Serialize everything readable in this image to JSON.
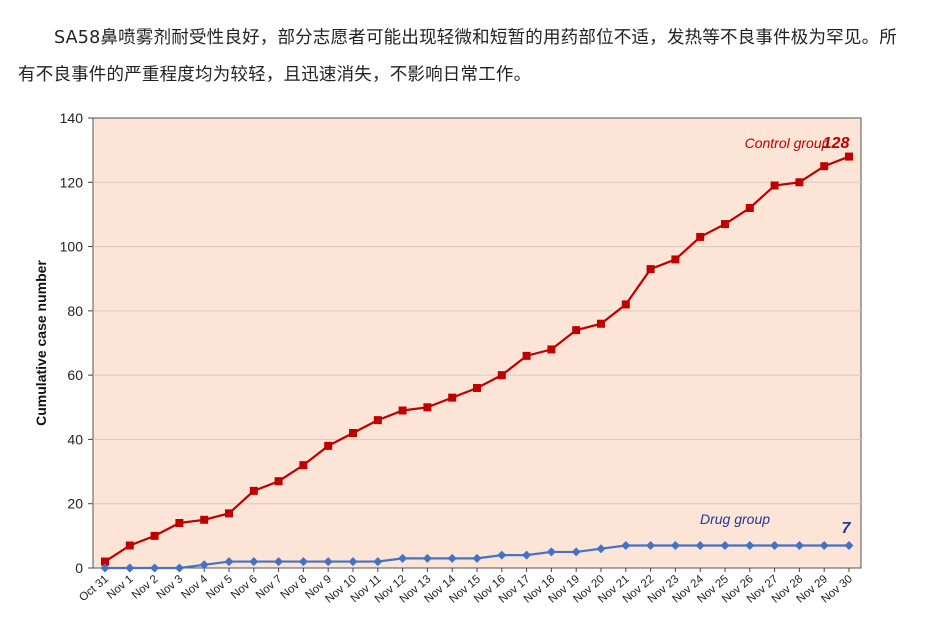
{
  "paragraph": "SA58鼻喷雾剂耐受性良好，部分志愿者可能出现轻微和短暂的用药部位不适，发热等不良事件极为罕见。所有不良事件的严重程度均为较轻，且迅速消失，不影响日常工作。",
  "chart_data": {
    "type": "line",
    "categories": [
      "Oct 31",
      "Nov 1",
      "Nov 2",
      "Nov 3",
      "Nov 4",
      "Nov 5",
      "Nov 6",
      "Nov 7",
      "Nov 8",
      "Nov 9",
      "Nov 10",
      "Nov 11",
      "Nov 12",
      "Nov 13",
      "Nov 14",
      "Nov 15",
      "Nov 16",
      "Nov 17",
      "Nov 18",
      "Nov 19",
      "Nov 20",
      "Nov 21",
      "Nov 22",
      "Nov 23",
      "Nov 24",
      "Nov 25",
      "Nov 26",
      "Nov 27",
      "Nov 28",
      "Nov 29",
      "Nov 30"
    ],
    "series": [
      {
        "name": "Control group",
        "color": "#c00000",
        "marker": "square",
        "end_label": "128",
        "values": [
          2,
          7,
          10,
          14,
          15,
          17,
          24,
          27,
          32,
          38,
          42,
          46,
          49,
          50,
          53,
          56,
          60,
          66,
          68,
          74,
          76,
          82,
          93,
          96,
          103,
          107,
          112,
          119,
          120,
          125,
          128
        ]
      },
      {
        "name": "Drug group",
        "color": "#4472c4",
        "marker": "diamond",
        "end_label": "7",
        "values": [
          0,
          0,
          0,
          0,
          1,
          2,
          2,
          2,
          2,
          2,
          2,
          2,
          3,
          3,
          3,
          3,
          4,
          4,
          5,
          5,
          6,
          7,
          7,
          7,
          7,
          7,
          7,
          7,
          7,
          7,
          7
        ]
      }
    ],
    "ylabel": "Cumulative case number",
    "xlabel": "",
    "ylim": [
      0,
      140
    ],
    "yticks": [
      0,
      20,
      40,
      60,
      80,
      100,
      120,
      140
    ],
    "grid": true,
    "plot_background": "#fce4d6",
    "grid_color": "#d9c9c0"
  }
}
